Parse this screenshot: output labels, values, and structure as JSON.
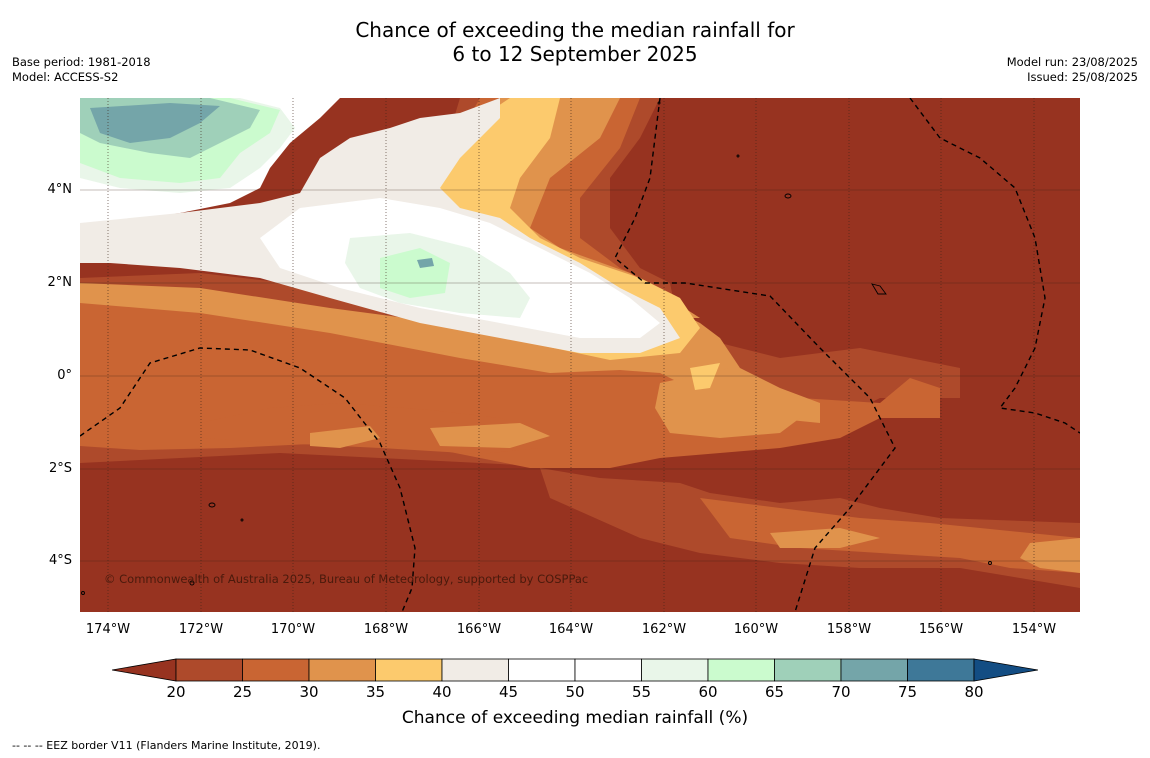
{
  "title_line1": "Chance of exceeding the median rainfall for",
  "title_line2": "6 to 12 September 2025",
  "base_period": "Base period: 1981-2018",
  "model": "Model: ACCESS-S2",
  "model_run": "Model run: 23/08/2025",
  "issued": "Issued: 25/08/2025",
  "copyright": "© Commonwealth of Australia 2025, Bureau of Meteorology, supported by COSPPac",
  "lat_labels": [
    "4°N",
    "2°N",
    "0°",
    "2°S",
    "4°S"
  ],
  "lon_labels": [
    "174°W",
    "172°W",
    "170°W",
    "168°W",
    "166°W",
    "164°W",
    "162°W",
    "160°W",
    "158°W",
    "156°W",
    "154°W"
  ],
  "colorbar": {
    "label": "Chance of exceeding median rainfall (%)",
    "ticks": [
      "20",
      "25",
      "30",
      "35",
      "40",
      "45",
      "50",
      "55",
      "60",
      "65",
      "70",
      "75",
      "80"
    ],
    "colors": [
      "#973320",
      "#ae4a2b",
      "#c96533",
      "#e0934c",
      "#fcca6d",
      "#f1ece6",
      "#ffffff",
      "#ffffff",
      "#e9f6e9",
      "#cbfbce",
      "#9fd0b9",
      "#74a5a9",
      "#3e7898",
      "#134d83"
    ]
  },
  "footnote": "-- -- -- EEZ border V11 (Flanders Marine Institute, 2019)."
}
